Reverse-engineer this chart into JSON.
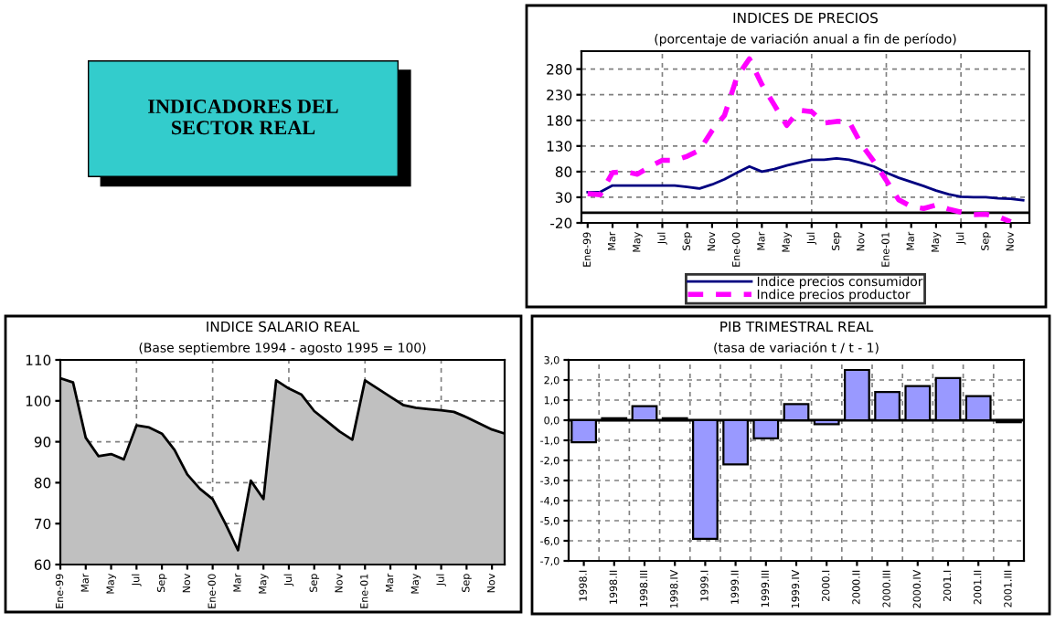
{
  "chart_data": [
    {
      "type": "other",
      "title": "INDICADORES DEL\nSECTOR REAL",
      "color": "#33cccc"
    },
    {
      "type": "line",
      "title": "INDICES DE PRECIOS",
      "subtitle": "(porcentaje de variación anual a fin de período)",
      "categories": [
        "Ene-99",
        null,
        "Mar",
        null,
        "May",
        null,
        "Jul",
        null,
        "Sep",
        null,
        "Nov",
        null,
        "Ene-00",
        null,
        "Mar",
        null,
        "May",
        null,
        "Jul",
        null,
        "Sep",
        null,
        "Nov",
        null,
        "Ene-01",
        null,
        "Mar",
        null,
        "May",
        null,
        "Jul",
        null,
        "Sep",
        null,
        "Nov",
        null
      ],
      "series": [
        {
          "name": "Indice precios consumidor",
          "color": "#000080",
          "line_style": "solid",
          "values": [
            40,
            40,
            53,
            53,
            53,
            53,
            53,
            53,
            50,
            47,
            55,
            65,
            78,
            90,
            80,
            85,
            92,
            98,
            103,
            103,
            106,
            103,
            97,
            90,
            78,
            68,
            60,
            52,
            43,
            36,
            31,
            30,
            30,
            28,
            27,
            24
          ]
        },
        {
          "name": "Indice precios productor",
          "color": "#ff00ff",
          "line_style": "dashed",
          "values": [
            37,
            35,
            78,
            80,
            75,
            90,
            102,
            102,
            110,
            122,
            160,
            190,
            265,
            300,
            250,
            210,
            170,
            200,
            197,
            175,
            178,
            178,
            133,
            100,
            63,
            25,
            12,
            8,
            15,
            7,
            1,
            -4,
            -3,
            -8,
            -18,
            null
          ]
        }
      ],
      "ylim": [
        -20,
        315
      ],
      "yticks": [
        -20,
        30,
        80,
        130,
        180,
        230,
        280
      ],
      "grid": true,
      "legend": "bottom",
      "ref_lines": [
        {
          "axis": "y",
          "value": 0,
          "color": "#000000"
        }
      ]
    },
    {
      "type": "area",
      "title": "INDICE SALARIO REAL",
      "subtitle": "(Base septiembre 1994 - agosto 1995 = 100)",
      "categories": [
        "Ene-99",
        null,
        "Mar",
        null,
        "May",
        null,
        "Jul",
        null,
        "Sep",
        null,
        "Nov",
        null,
        "Ene-00",
        null,
        "Mar",
        null,
        "May",
        null,
        "Jul",
        null,
        "Sep",
        null,
        "Nov",
        null,
        "Ene-01",
        null,
        "Mar",
        null,
        "May",
        null,
        "Jul",
        null,
        "Sep",
        null,
        "Nov",
        null
      ],
      "series": [
        {
          "color": "#c0c0c0",
          "values": [
            105.5,
            104.5,
            91,
            86.5,
            87,
            85.7,
            94,
            93.5,
            92,
            88,
            82,
            78.5,
            76,
            70,
            63.5,
            80.5,
            76,
            105,
            103,
            101.5,
            97.5,
            95,
            92.5,
            90.5,
            105,
            103,
            101,
            99,
            98.3,
            98,
            97.7,
            97.3,
            96,
            94.5,
            93,
            92
          ]
        }
      ],
      "ylim": [
        60,
        110
      ],
      "yticks": [
        60,
        70,
        80,
        90,
        100,
        110
      ],
      "grid": true
    },
    {
      "type": "bar",
      "title": "PIB TRIMESTRAL REAL",
      "subtitle": "(tasa de variación t / t - 1)",
      "categories": [
        "1998.I",
        "1998.II",
        "1998.III",
        "1998.IV",
        "1999.I",
        "1999.II",
        "1999.III",
        "1999.IV",
        "2000.I",
        "2000.II",
        "2000.III",
        "2000.IV",
        "2001.I",
        "2001.II",
        "2001.III"
      ],
      "series": [
        {
          "color": "#9999ff",
          "values": [
            -1.1,
            0.1,
            0.7,
            0.1,
            -5.9,
            -2.2,
            -0.9,
            0.8,
            -0.2,
            2.5,
            1.4,
            1.7,
            2.1,
            1.2,
            -0.1
          ]
        }
      ],
      "ylim": [
        -7,
        3
      ],
      "yticks": [
        {
          "value": -7,
          "label": "-7,0"
        },
        {
          "value": -6,
          "label": "-6,0"
        },
        {
          "value": -5,
          "label": "-5,0"
        },
        {
          "value": -4,
          "label": "-4,0"
        },
        {
          "value": -3,
          "label": "-3,0"
        },
        {
          "value": -2,
          "label": "-2,0"
        },
        {
          "value": -1,
          "label": "-1,0"
        },
        {
          "value": 0,
          "label": "0,0"
        },
        {
          "value": 1,
          "label": "1,0"
        },
        {
          "value": 2,
          "label": "2,0"
        },
        {
          "value": 3,
          "label": "3,0"
        }
      ],
      "grid": true,
      "ref_lines": [
        {
          "axis": "y",
          "value": 0,
          "color": "#000000"
        }
      ]
    }
  ]
}
